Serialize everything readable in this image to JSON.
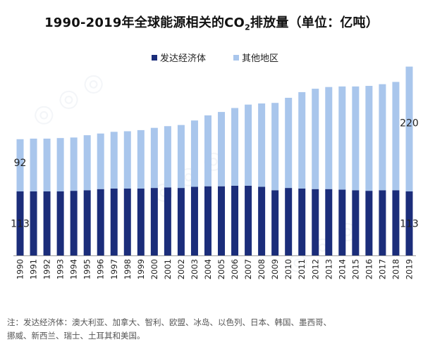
{
  "title": {
    "main": "1990-2019年全球能源相关的CO",
    "sub": "2",
    "tail": "排放量（单位：亿吨）"
  },
  "note": {
    "line1": "注：发达经济体：澳大利亚、加拿大、智利、欧盟、冰岛、以色列、日本、韩国、墨西哥、",
    "line2": "挪威、新西兰、瑞士、土耳其和美国。"
  },
  "colors": {
    "developed": "#1b2d7a",
    "others": "#a9c6ec",
    "axis": "#9a9a9a",
    "text": "#222222"
  },
  "chart_data": {
    "type": "bar",
    "stacked": true,
    "categories": [
      "1990",
      "1991",
      "1992",
      "1993",
      "1994",
      "1995",
      "1996",
      "1997",
      "1998",
      "1999",
      "2000",
      "2001",
      "2002",
      "2003",
      "2004",
      "2005",
      "2006",
      "2007",
      "2008",
      "2009",
      "2010",
      "2011",
      "2012",
      "2013",
      "2014",
      "2015",
      "2016",
      "2017",
      "2018",
      "2019"
    ],
    "series": [
      {
        "name": "发达经济体",
        "values": [
          113,
          113,
          113,
          113,
          114,
          115,
          117,
          118,
          118,
          118,
          119,
          120,
          119,
          121,
          122,
          122,
          123,
          123,
          121,
          115,
          119,
          118,
          117,
          117,
          116,
          115,
          114,
          115,
          115,
          113
        ]
      },
      {
        "name": "其他地区",
        "values": [
          92,
          93,
          93,
          94,
          94,
          97,
          98,
          100,
          101,
          103,
          106,
          108,
          111,
          117,
          125,
          131,
          137,
          143,
          147,
          154,
          159,
          170,
          177,
          180,
          182,
          183,
          185,
          187,
          191,
          220
        ]
      }
    ],
    "data_labels": [
      {
        "category": "1990",
        "series": "发达经济体",
        "text": "113"
      },
      {
        "category": "1990",
        "series": "其他地区",
        "text": "92"
      },
      {
        "category": "2019",
        "series": "发达经济体",
        "text": "113"
      },
      {
        "category": "2019",
        "series": "其他地区",
        "text": "220"
      }
    ],
    "legend_position": "top-center",
    "ylim": [
      0,
      340
    ],
    "grid": false
  }
}
